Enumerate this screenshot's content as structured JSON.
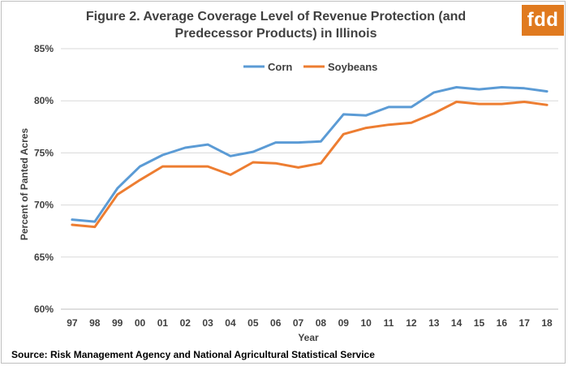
{
  "title": "Figure 2.  Average Coverage Level of Revenue Protection (and Predecessor Products) in Illinois",
  "logo_text": "fdd",
  "source": "Source:  Risk Management Agency and National Agricultural Statistical Service",
  "colors": {
    "corn": "#5b9bd5",
    "soybeans": "#ed7d31",
    "grid": "#d9d9d9",
    "axis": "#bfbfbf",
    "logo": "#e07a1f"
  },
  "chart_data": {
    "type": "line",
    "title": "Figure 2.  Average Coverage Level of Revenue Protection (and Predecessor Products) in Illinois",
    "xlabel": "Year",
    "ylabel": "Percent of Panted Acres",
    "ylim": [
      60,
      85
    ],
    "yticks": [
      "60%",
      "65%",
      "70%",
      "75%",
      "80%",
      "85%"
    ],
    "ytick_values": [
      60,
      65,
      70,
      75,
      80,
      85
    ],
    "grid": "horizontal",
    "legend": "top-left",
    "categories": [
      "97",
      "98",
      "99",
      "00",
      "01",
      "02",
      "03",
      "04",
      "05",
      "06",
      "07",
      "08",
      "09",
      "10",
      "11",
      "12",
      "13",
      "14",
      "15",
      "16",
      "17",
      "18"
    ],
    "series": [
      {
        "name": "Corn",
        "values": [
          68.6,
          68.4,
          71.6,
          73.7,
          74.8,
          75.5,
          75.8,
          74.7,
          75.1,
          76.0,
          76.0,
          76.1,
          78.7,
          78.6,
          79.4,
          79.4,
          80.8,
          81.3,
          81.1,
          81.3,
          81.2,
          80.9
        ]
      },
      {
        "name": "Soybeans",
        "values": [
          68.1,
          67.9,
          71.0,
          72.4,
          73.7,
          73.7,
          73.7,
          72.9,
          74.1,
          74.0,
          73.6,
          74.0,
          76.8,
          77.4,
          77.7,
          77.9,
          78.8,
          79.9,
          79.7,
          79.7,
          79.9,
          79.6
        ]
      }
    ]
  }
}
